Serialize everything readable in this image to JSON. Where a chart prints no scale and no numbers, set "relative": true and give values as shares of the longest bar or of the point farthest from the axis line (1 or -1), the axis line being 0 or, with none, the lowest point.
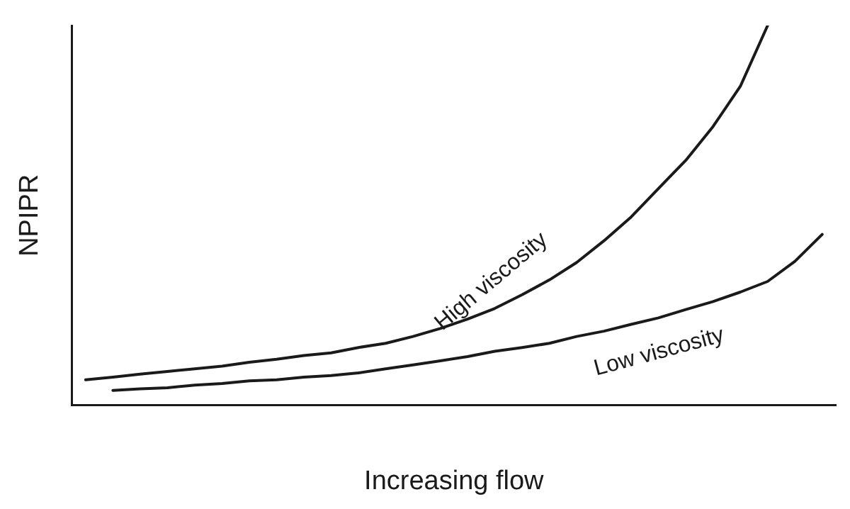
{
  "chart_data": {
    "type": "line",
    "relative": true,
    "xlabel": "Increasing flow",
    "ylabel": "NPIPR",
    "legend": false,
    "marker": "none",
    "line_style": "solid",
    "categories": [
      null,
      null,
      null,
      null,
      null,
      null,
      null,
      null,
      null,
      null,
      null,
      null,
      null,
      null,
      null,
      null,
      null,
      null,
      null,
      null,
      null,
      null,
      null,
      null,
      null,
      null,
      null,
      null
    ],
    "series": [
      {
        "name": "High viscosity",
        "color": "#1a1a1a",
        "values": [
          0.067,
          0.074,
          0.082,
          0.089,
          0.096,
          0.103,
          0.113,
          0.121,
          0.131,
          0.138,
          0.152,
          0.163,
          0.181,
          0.202,
          0.227,
          0.255,
          0.291,
          0.33,
          0.376,
          0.433,
          0.496,
          0.571,
          0.645,
          0.734,
          0.84,
          1,
          null,
          null
        ]
      },
      {
        "name": "Low viscosity",
        "color": "#1a1a1a",
        "values": [
          null,
          0.039,
          0.043,
          0.046,
          0.053,
          0.057,
          0.064,
          0.067,
          0.074,
          0.078,
          0.085,
          0.096,
          0.106,
          0.117,
          0.128,
          0.142,
          0.152,
          0.163,
          0.181,
          0.195,
          0.213,
          0.23,
          0.252,
          0.273,
          0.298,
          0.326,
          0.379,
          0.45
        ]
      }
    ]
  }
}
